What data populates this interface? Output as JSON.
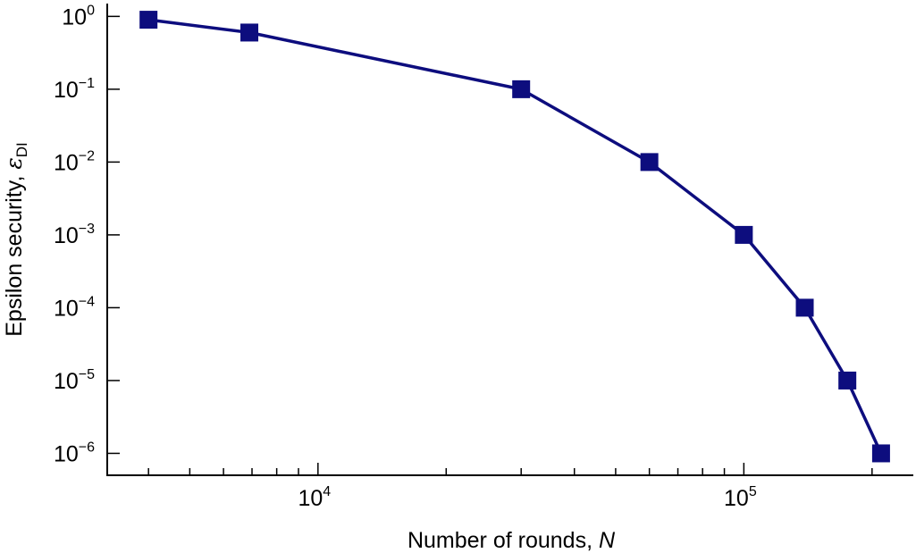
{
  "chart_data": {
    "type": "line",
    "title": "",
    "xlabel": "Number of rounds, N",
    "xlabel_parts": {
      "text": "Number of rounds, ",
      "var": "N"
    },
    "ylabel": "Epsilon security, εDI",
    "ylabel_parts": {
      "text": "Epsilon security, ",
      "var": "ε",
      "sub": "DI"
    },
    "xscale": "log",
    "yscale": "log",
    "xlim": [
      3200,
      250000
    ],
    "ylim": [
      5e-07,
      1.5
    ],
    "grid": false,
    "x_ticks": [
      {
        "base": "10",
        "exp": "4"
      },
      {
        "base": "10",
        "exp": "5"
      }
    ],
    "y_ticks": [
      {
        "base": "10",
        "exp": "0"
      },
      {
        "base": "10",
        "exp": "−1"
      },
      {
        "base": "10",
        "exp": "−2"
      },
      {
        "base": "10",
        "exp": "−3"
      },
      {
        "base": "10",
        "exp": "−4"
      },
      {
        "base": "10",
        "exp": "−5"
      },
      {
        "base": "10",
        "exp": "−6"
      }
    ],
    "series": [
      {
        "color": "#0d0d7e",
        "marker": "square",
        "points": [
          {
            "x": 4000,
            "y": 0.9
          },
          {
            "x": 6900,
            "y": 0.6
          },
          {
            "x": 30000,
            "y": 0.1
          },
          {
            "x": 60000,
            "y": 0.01
          },
          {
            "x": 100000,
            "y": 0.001
          },
          {
            "x": 139000,
            "y": 0.0001
          },
          {
            "x": 175000,
            "y": 1e-05
          },
          {
            "x": 210000,
            "y": 1e-06
          }
        ]
      }
    ]
  }
}
